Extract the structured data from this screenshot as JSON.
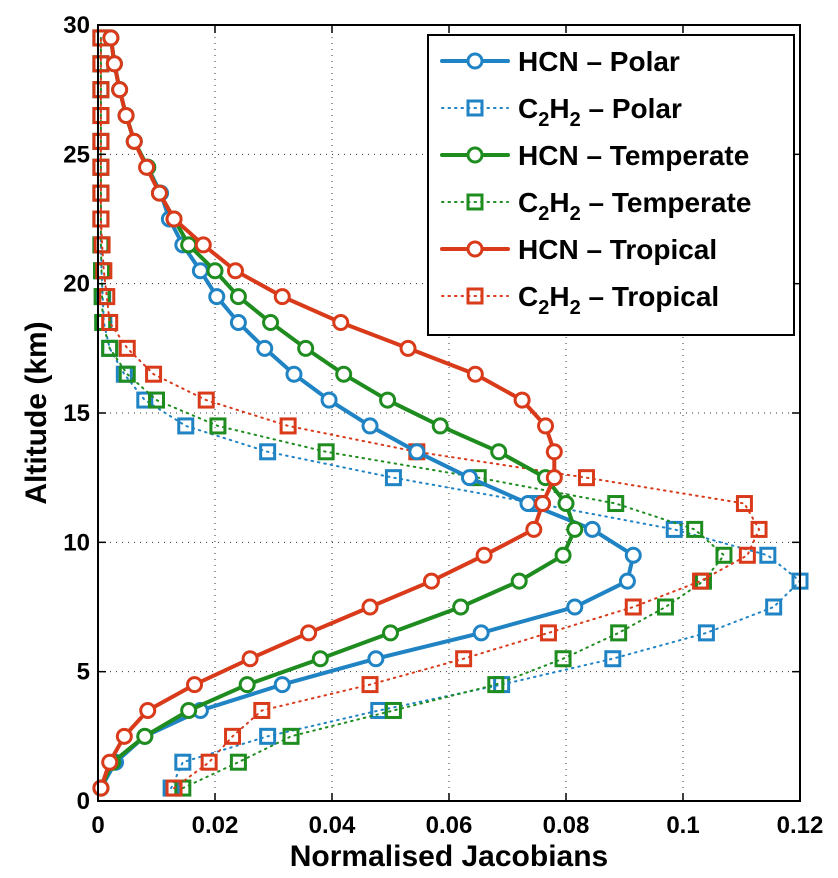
{
  "chart_data": {
    "type": "line",
    "title": "",
    "xlabel": "Normalised Jacobians",
    "ylabel": "Altitude (km)",
    "xlim": [
      0,
      0.12
    ],
    "ylim": [
      0,
      30
    ],
    "xticks": [
      "0",
      "0.02",
      "0.04",
      "0.06",
      "0.08",
      "0.1",
      "0.12"
    ],
    "yticks": [
      "0",
      "5",
      "10",
      "15",
      "20",
      "25",
      "30"
    ],
    "grid": true,
    "legend_position": "top-right",
    "y": [
      0.5,
      1.5,
      2.5,
      3.5,
      4.5,
      5.5,
      6.5,
      7.5,
      8.5,
      9.5,
      10.5,
      11.5,
      12.5,
      13.5,
      14.5,
      15.5,
      16.5,
      17.5,
      18.5,
      19.5,
      20.5,
      21.5,
      22.5,
      23.5,
      24.5,
      25.5,
      26.5,
      27.5,
      28.5,
      29.5
    ],
    "series": [
      {
        "name": "HCN – Polar",
        "legend": {
          "pre": "HCN",
          "post": " – Polar"
        },
        "color": "#1f83c4",
        "line": "solid",
        "marker": "circle",
        "x": [
          0.0005,
          0.003,
          0.008,
          0.0175,
          0.0315,
          0.0475,
          0.0655,
          0.0815,
          0.0905,
          0.0915,
          0.0845,
          0.0735,
          0.0635,
          0.0545,
          0.0465,
          0.0395,
          0.0335,
          0.0285,
          0.024,
          0.0203,
          0.0175,
          0.0145,
          0.0122,
          0.0107,
          0.0085,
          0.0062,
          0.0048,
          0.0037,
          0.0028,
          0.0022
        ]
      },
      {
        "name": "C2H2 – Polar",
        "legend": {
          "pre": "C",
          "sub1": "2",
          "mid": "H",
          "sub2": "2",
          "post": " – Polar"
        },
        "color": "#1f83c4",
        "line": "dotted",
        "marker": "square",
        "x": [
          0.0125,
          0.0145,
          0.029,
          0.048,
          0.069,
          0.088,
          0.104,
          0.1155,
          0.12,
          0.1145,
          0.0985,
          0.075,
          0.0505,
          0.029,
          0.015,
          0.008,
          0.0045,
          0.002,
          0.001,
          0.0008,
          0.0006,
          0.0005,
          0.0005,
          0.0005,
          0.0005,
          0.0005,
          0.0005,
          0.0005,
          0.0005,
          0.0005
        ]
      },
      {
        "name": "HCN – Temperate",
        "legend": {
          "pre": "HCN",
          "post": " – Temperate"
        },
        "color": "#1e8c1e",
        "line": "solid",
        "marker": "circle",
        "x": [
          0.0005,
          0.0025,
          0.008,
          0.0155,
          0.0255,
          0.038,
          0.05,
          0.062,
          0.072,
          0.0795,
          0.0815,
          0.08,
          0.0765,
          0.0685,
          0.0585,
          0.0495,
          0.042,
          0.0355,
          0.0295,
          0.024,
          0.02,
          0.0155,
          0.013,
          0.0105,
          0.0085,
          0.0062,
          0.0048,
          0.0037,
          0.0028,
          0.0022
        ]
      },
      {
        "name": "C2H2 – Temperate",
        "legend": {
          "pre": "C",
          "sub1": "2",
          "mid": "H",
          "sub2": "2",
          "post": " – Temperate"
        },
        "color": "#1e8c1e",
        "line": "dotted",
        "marker": "square",
        "x": [
          0.0145,
          0.024,
          0.033,
          0.0505,
          0.068,
          0.0795,
          0.089,
          0.097,
          0.1035,
          0.107,
          0.102,
          0.0885,
          0.065,
          0.039,
          0.0205,
          0.01,
          0.005,
          0.002,
          0.0008,
          0.0007,
          0.0006,
          0.0005,
          0.0005,
          0.0005,
          0.0005,
          0.0005,
          0.0005,
          0.0005,
          0.0005,
          0.0005
        ]
      },
      {
        "name": "HCN – Tropical",
        "legend": {
          "pre": "HCN",
          "post": " – Tropical"
        },
        "color": "#d93a1a",
        "line": "solid",
        "marker": "circle",
        "x": [
          0.0005,
          0.002,
          0.0045,
          0.0085,
          0.0165,
          0.026,
          0.036,
          0.0465,
          0.057,
          0.066,
          0.0745,
          0.076,
          0.078,
          0.078,
          0.0765,
          0.0725,
          0.0645,
          0.053,
          0.0415,
          0.0315,
          0.0235,
          0.018,
          0.013,
          0.0105,
          0.0083,
          0.0062,
          0.0048,
          0.0037,
          0.0028,
          0.0022
        ]
      },
      {
        "name": "C2H2 – Tropical",
        "legend": {
          "pre": "C",
          "sub1": "2",
          "mid": "H",
          "sub2": "2",
          "post": " – Tropical"
        },
        "color": "#d93a1a",
        "line": "dotted",
        "marker": "square",
        "x": [
          0.013,
          0.019,
          0.023,
          0.028,
          0.0465,
          0.0625,
          0.077,
          0.0915,
          0.103,
          0.111,
          0.113,
          0.1105,
          0.0835,
          0.0545,
          0.0325,
          0.0185,
          0.0095,
          0.005,
          0.002,
          0.0015,
          0.001,
          0.0007,
          0.0005,
          0.0005,
          0.0005,
          0.0005,
          0.0005,
          0.0005,
          0.0005,
          0.0005
        ]
      }
    ]
  }
}
